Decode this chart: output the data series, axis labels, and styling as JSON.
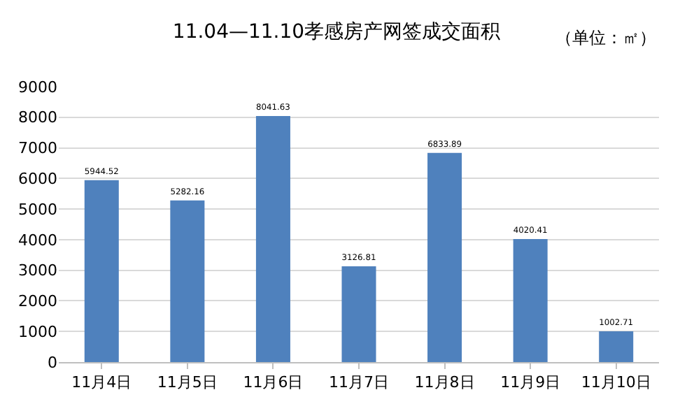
{
  "chart_data": {
    "type": "bar",
    "title": "11.04—11.10孝感房产网签成交面积",
    "subtitle": "（单位：㎡）",
    "categories": [
      "11月4日",
      "11月5日",
      "11月6日",
      "11月7日",
      "11月8日",
      "11月9日",
      "11月10日"
    ],
    "values": [
      5944.52,
      5282.16,
      8041.63,
      3126.81,
      6833.89,
      4020.41,
      1002.71
    ],
    "color": "#4f81bd",
    "data_labels": true,
    "grid": "y",
    "ylim": [
      0,
      9000
    ],
    "yticks": [
      0,
      1000,
      2000,
      3000,
      4000,
      5000,
      6000,
      7000,
      8000,
      9000
    ]
  }
}
